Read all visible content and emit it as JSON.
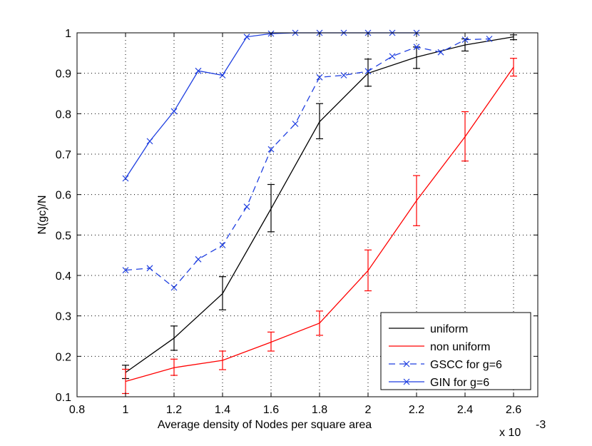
{
  "chart_data": {
    "type": "line",
    "title": "",
    "xlabel": "Average density of Nodes per square area",
    "ylabel": "N(gc)/N",
    "x_exponent_base": "x 10",
    "x_exponent_power": "-3",
    "xlim": [
      0.8,
      2.7
    ],
    "ylim": [
      0.1,
      1.0
    ],
    "xticks": [
      0.8,
      1,
      1.2,
      1.4,
      1.6,
      1.8,
      2,
      2.2,
      2.4,
      2.6
    ],
    "xtick_labels": [
      "0.8",
      "1",
      "1.2",
      "1.4",
      "1.6",
      "1.8",
      "2",
      "2.2",
      "2.4",
      "2.6"
    ],
    "yticks": [
      0.1,
      0.2,
      0.3,
      0.4,
      0.5,
      0.6,
      0.7,
      0.8,
      0.9,
      1.0
    ],
    "ytick_labels": [
      "0.1",
      "0.2",
      "0.3",
      "0.4",
      "0.5",
      "0.6",
      "0.7",
      "0.8",
      "0.9",
      "1"
    ],
    "grid": true,
    "legend_position": "bottom-right",
    "series": [
      {
        "name": "uniform",
        "color": "#000000",
        "style": "solid",
        "marker": "none",
        "x": [
          1.0,
          1.2,
          1.4,
          1.6,
          1.8,
          2.0,
          2.2,
          2.4,
          2.6
        ],
        "y": [
          0.16,
          0.245,
          0.355,
          0.565,
          0.78,
          0.9,
          0.94,
          0.97,
          0.99
        ],
        "err_low": [
          0.145,
          0.215,
          0.315,
          0.508,
          0.738,
          0.868,
          0.912,
          0.955,
          0.983
        ],
        "err_high": [
          0.178,
          0.275,
          0.397,
          0.625,
          0.825,
          0.935,
          0.965,
          0.985,
          0.995
        ]
      },
      {
        "name": "non uniform",
        "color": "#ff0000",
        "style": "solid",
        "marker": "none",
        "x": [
          1.0,
          1.2,
          1.4,
          1.6,
          1.8,
          2.0,
          2.2,
          2.4,
          2.6
        ],
        "y": [
          0.138,
          0.172,
          0.19,
          0.235,
          0.282,
          0.412,
          0.585,
          0.743,
          0.915
        ],
        "err_low": [
          0.108,
          0.153,
          0.167,
          0.213,
          0.252,
          0.362,
          0.523,
          0.683,
          0.893
        ],
        "err_high": [
          0.168,
          0.193,
          0.213,
          0.26,
          0.312,
          0.463,
          0.647,
          0.805,
          0.937
        ]
      },
      {
        "name": "GSCC for g=6",
        "color": "#1f3fe0",
        "style": "dashed",
        "marker": "x",
        "x": [
          1.0,
          1.1,
          1.2,
          1.3,
          1.4,
          1.5,
          1.6,
          1.7,
          1.8,
          1.9,
          2.0,
          2.1,
          2.2,
          2.3,
          2.4,
          2.5
        ],
        "y": [
          0.413,
          0.418,
          0.37,
          0.44,
          0.475,
          0.57,
          0.712,
          0.775,
          0.89,
          0.895,
          0.905,
          0.942,
          0.965,
          0.952,
          0.983,
          0.985
        ]
      },
      {
        "name": "GIN for g=6",
        "color": "#1f3fe0",
        "style": "solid",
        "marker": "x",
        "x": [
          1.0,
          1.1,
          1.2,
          1.3,
          1.4,
          1.5,
          1.6,
          1.7,
          1.8,
          1.9,
          2.0,
          2.1,
          2.2
        ],
        "y": [
          0.64,
          0.732,
          0.806,
          0.906,
          0.895,
          0.99,
          0.998,
          1.0,
          1.0,
          1.0,
          1.0,
          1.0,
          1.0
        ]
      }
    ]
  }
}
